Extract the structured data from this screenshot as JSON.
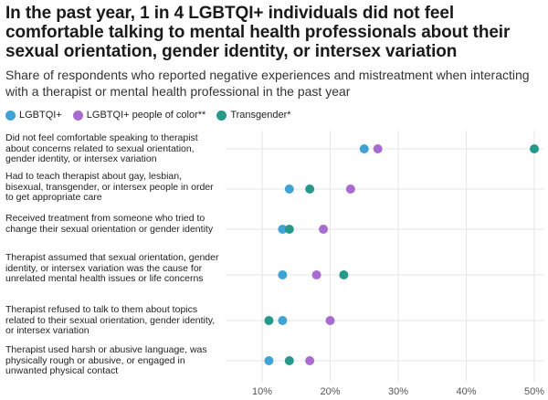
{
  "title": "In the past year, 1 in 4 LGBTQI+ individuals did not feel comfortable talking to mental health professionals about their sexual orientation, gender identity, or intersex variation",
  "subtitle": "Share of respondents who reported negative experiences and mistreatment when interacting with a therapist or mental health professional in the past year",
  "colors": {
    "LGBTQI+": "#3fa3d6",
    "LGBTQI+ people of color**": "#a86cd0",
    "Transgender*": "#27998a",
    "grid": "#e6e6e6"
  },
  "chart_data": {
    "type": "dot",
    "title": "",
    "xlabel": "",
    "ylabel": "",
    "xlim": [
      5,
      51
    ],
    "x_ticks": [
      10,
      20,
      30,
      40,
      50
    ],
    "x_tick_labels": [
      "10%",
      "20%",
      "30%",
      "40%",
      "50%"
    ],
    "grid": true,
    "legend_position": "top-left",
    "categories": [
      "Did not feel comfortable speaking to therapist about concerns related to sexual orientation, gender identity, or intersex variation",
      "Had to teach therapist about gay, lesbian, bisexual, transgender, or intersex people in order to get appropriate care",
      "Received treatment from someone who tried to change their sexual orientation or gender identity",
      "Therapist assumed that sexual orientation, gender identity, or intersex variation was the cause for unrelated mental health issues or life concerns",
      "Therapist refused to talk to them about topics related to their sexual orientation, gender identity, or intersex variation",
      "Therapist used harsh or abusive language, was physically rough or abusive, or engaged in unwanted physical contact"
    ],
    "series": [
      {
        "name": "LGBTQI+",
        "values": [
          25,
          14,
          13,
          13,
          13,
          11
        ]
      },
      {
        "name": "LGBTQI+ people of color**",
        "values": [
          27,
          23,
          19,
          18,
          20,
          17
        ]
      },
      {
        "name": "Transgender*",
        "values": [
          50,
          17,
          14,
          22,
          11,
          14
        ]
      }
    ]
  }
}
